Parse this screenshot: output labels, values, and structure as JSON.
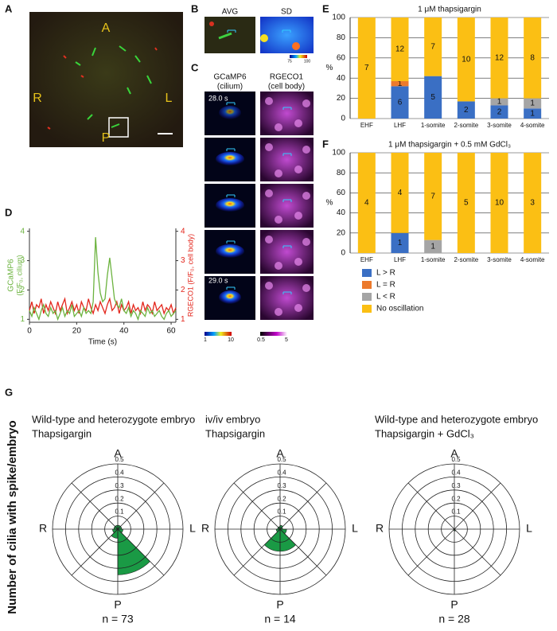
{
  "panels": {
    "labels": [
      "A",
      "B",
      "C",
      "D",
      "E",
      "F",
      "G"
    ],
    "image_a": {
      "anterior": "A",
      "right": "R",
      "left": "L",
      "posterior": "P"
    },
    "image_b": {
      "avg": "AVG",
      "sd": "SD",
      "colorbar": [
        "75",
        "100"
      ]
    },
    "image_c": {
      "left_title": "GCaMP6",
      "left_sub": "(cilium)",
      "right_title": "RGECO1",
      "right_sub": "(cell body)",
      "first_time": "28.0 s",
      "last_time": "29.0 s",
      "left_colorbar": [
        "1",
        "10"
      ],
      "right_colorbar": [
        "0.5",
        "5"
      ]
    }
  },
  "chart_data": [
    {
      "type": "bar",
      "stacked": true,
      "title": "1 μM thapsigargin",
      "ylabel": "%",
      "categories": [
        "EHF",
        "LHF",
        "1-somite",
        "2-somite",
        "3-somite",
        "4-somite"
      ],
      "ylim": [
        0,
        100
      ],
      "yticks": [
        0,
        20,
        40,
        60,
        80,
        100
      ],
      "grid": true,
      "legend": false,
      "series": [
        {
          "name": "L > R",
          "color": "#3a6fc4",
          "values": [
            0,
            32,
            42,
            17,
            13,
            10
          ],
          "counts": [
            null,
            6,
            5,
            2,
            2,
            1
          ]
        },
        {
          "name": "L = R",
          "color": "#ec7a2c",
          "values": [
            0,
            5,
            0,
            0,
            0,
            0
          ],
          "counts": [
            null,
            1,
            null,
            null,
            null,
            null
          ]
        },
        {
          "name": "L < R",
          "color": "#a5a5a5",
          "values": [
            0,
            0,
            0,
            0,
            7,
            10
          ],
          "counts": [
            null,
            null,
            null,
            null,
            1,
            1
          ]
        },
        {
          "name": "No oscillation",
          "color": "#fbbf14",
          "values": [
            100,
            63,
            58,
            83,
            80,
            80
          ],
          "counts": [
            7,
            12,
            7,
            10,
            12,
            8
          ]
        }
      ]
    },
    {
      "type": "bar",
      "stacked": true,
      "title": "1 μM thapsigargin + 0.5 mM GdCl₃",
      "ylabel": "%",
      "categories": [
        "EHF",
        "LHF",
        "1-somite",
        "2-somite",
        "3-somite",
        "4-somite"
      ],
      "ylim": [
        0,
        100
      ],
      "yticks": [
        0,
        20,
        40,
        60,
        80,
        100
      ],
      "grid": true,
      "legend": true,
      "series": [
        {
          "name": "L > R",
          "color": "#3a6fc4",
          "values": [
            0,
            20,
            0,
            0,
            0,
            0
          ],
          "counts": [
            null,
            1,
            null,
            null,
            null,
            null
          ]
        },
        {
          "name": "L = R",
          "color": "#ec7a2c",
          "values": [
            0,
            0,
            0,
            0,
            0,
            0
          ],
          "counts": [
            null,
            null,
            null,
            null,
            null,
            null
          ]
        },
        {
          "name": "L < R",
          "color": "#a5a5a5",
          "values": [
            0,
            0,
            13,
            0,
            0,
            0
          ],
          "counts": [
            null,
            null,
            1,
            null,
            null,
            null
          ]
        },
        {
          "name": "No oscillation",
          "color": "#fbbf14",
          "values": [
            100,
            80,
            87,
            100,
            100,
            100
          ],
          "counts": [
            4,
            4,
            7,
            5,
            10,
            3
          ]
        }
      ]
    },
    {
      "type": "line",
      "xlabel": "Time (s)",
      "ylabel": [
        "GCaMP6",
        "(F/F₀, cilium)"
      ],
      "y2label": "RGECO1 (F/F₀, cell body)",
      "xlim": [
        0,
        62
      ],
      "xticks": [
        0,
        20,
        40,
        60
      ],
      "ylim": [
        0.9,
        4.1
      ],
      "yticks": [
        1,
        2,
        3,
        4
      ],
      "y2lim": [
        0.9,
        4.1
      ],
      "y2ticks": [
        1,
        2,
        3,
        4
      ],
      "x": [
        0,
        1,
        2,
        3,
        4,
        5,
        6,
        7,
        8,
        9,
        10,
        11,
        12,
        13,
        14,
        15,
        16,
        17,
        18,
        19,
        20,
        21,
        22,
        23,
        24,
        25,
        26,
        27,
        28,
        29,
        30,
        31,
        32,
        33,
        34,
        35,
        36,
        37,
        38,
        39,
        40,
        41,
        42,
        43,
        44,
        45,
        46,
        47,
        48,
        49,
        50,
        51,
        52,
        53,
        54,
        55,
        56,
        57,
        58,
        59,
        60,
        61,
        62
      ],
      "series": [
        {
          "color": "#e3261c",
          "axis": "y2",
          "values": [
            1.3,
            1.6,
            1.2,
            1.5,
            1.4,
            1.7,
            1.2,
            1.5,
            1.3,
            1.6,
            1.4,
            1.2,
            1.6,
            1.3,
            1.5,
            1.7,
            1.2,
            1.4,
            1.6,
            1.3,
            1.5,
            1.2,
            1.6,
            1.4,
            1.3,
            1.7,
            1.4,
            1.2,
            1.5,
            1.3,
            1.6,
            1.4,
            1.2,
            1.5,
            1.7,
            1.3,
            1.4,
            1.6,
            1.2,
            1.5,
            1.3,
            1.4,
            1.6,
            1.2,
            1.5,
            1.3,
            1.4,
            1.2,
            1.6,
            1.3,
            1.5,
            1.4,
            1.2,
            1.6,
            1.3,
            1.4,
            1.5,
            1.2,
            1.4,
            1.3,
            1.5,
            1.2,
            1.4
          ]
        },
        {
          "color": "#6cb33f",
          "axis": "y",
          "values": [
            1.3,
            1.1,
            1.4,
            1.2,
            1.0,
            1.3,
            1.5,
            1.2,
            1.1,
            1.4,
            1.2,
            1.3,
            1.0,
            1.2,
            1.4,
            1.1,
            1.3,
            1.2,
            1.5,
            1.1,
            1.2,
            1.3,
            1.1,
            1.4,
            1.2,
            1.3,
            1.2,
            1.6,
            3.8,
            2.6,
            1.9,
            1.6,
            1.7,
            2.5,
            3.1,
            2.4,
            1.7,
            1.5,
            1.4,
            1.7,
            1.3,
            1.2,
            1.4,
            1.1,
            1.3,
            1.2,
            1.0,
            1.3,
            1.2,
            1.1,
            1.4,
            1.2,
            1.3,
            1.1,
            1.2,
            1.3,
            1.1,
            1.0,
            1.2,
            1.3,
            1.1,
            1.2,
            1.3
          ]
        }
      ]
    },
    {
      "type": "polar",
      "ylabel": "Number of cilia with spike/embryo",
      "title": "Wild-type and heterozygote embryo",
      "subtitle": "Thapsigargin",
      "direction_labels": [
        "A",
        "L",
        "P",
        "R"
      ],
      "rlim": [
        0,
        0.5
      ],
      "rticks": [
        0.1,
        0.2,
        0.3,
        0.4,
        0.5
      ],
      "color": "#1a9a45",
      "values": [
        0.03,
        0.03,
        0.04,
        0.35,
        0.07,
        0.04,
        0.03,
        0.03
      ],
      "n_label": "n = 73"
    },
    {
      "type": "polar",
      "title": "iv/iv embryo",
      "subtitle": "Thapsigargin",
      "direction_labels": [
        "A",
        "L",
        "P",
        "R"
      ],
      "rlim": [
        0,
        0.5
      ],
      "rticks": [
        0.1,
        0.2,
        0.3,
        0.4,
        0.5
      ],
      "color": "#1a9a45",
      "values": [
        0.03,
        0.02,
        0.05,
        0.17,
        0.17,
        0.03,
        0.02,
        0.02
      ],
      "n_label": "n = 14"
    },
    {
      "type": "polar",
      "title": "Wild-type and heterozygote embryo",
      "subtitle": "Thapsigargin + GdCl₃",
      "direction_labels": [
        "A",
        "L",
        "P",
        "R"
      ],
      "rlim": [
        0,
        0.5
      ],
      "rticks": [
        0.1,
        0.2,
        0.3,
        0.4,
        0.5
      ],
      "color": "#1a9a45",
      "values": [
        0.005,
        0.005,
        0.005,
        0.015,
        0.01,
        0.005,
        0.005,
        0.005
      ],
      "n_label": "n = 28"
    }
  ]
}
